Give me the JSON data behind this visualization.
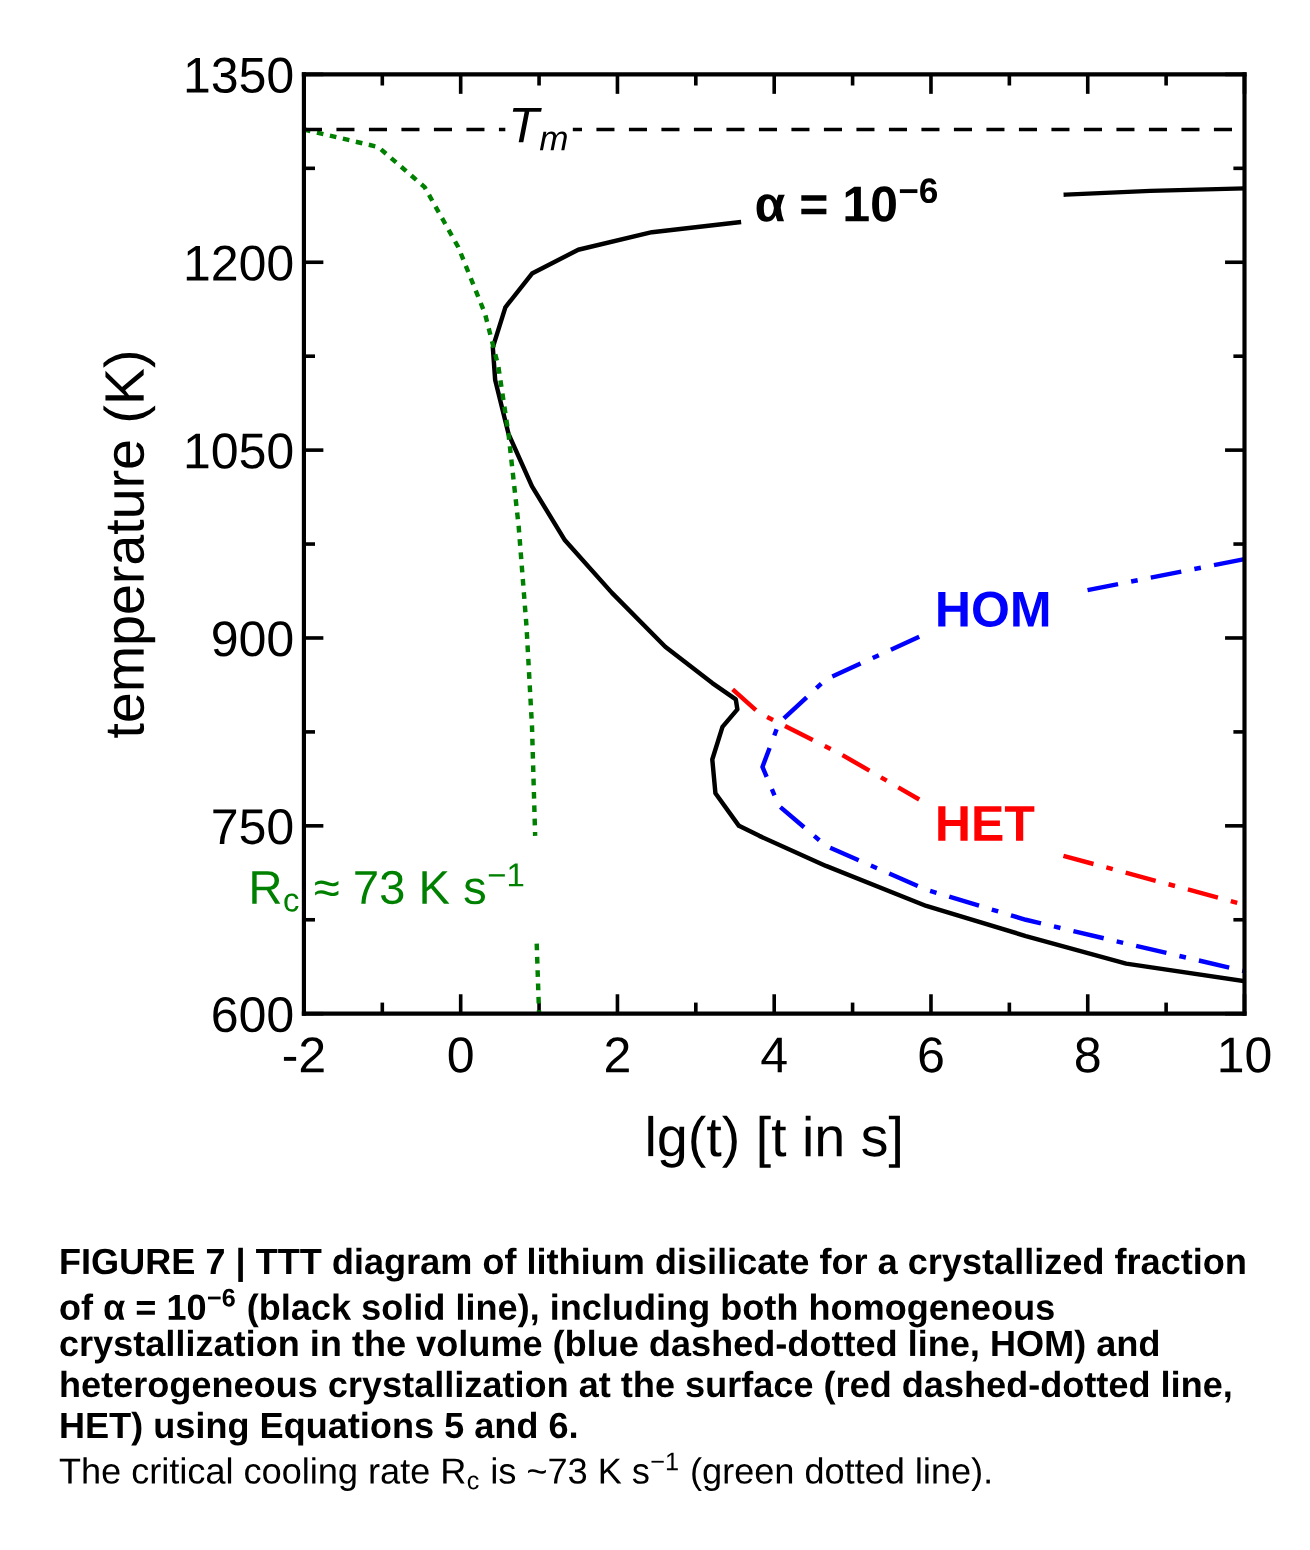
{
  "chart_data": {
    "type": "line",
    "xlabel": "lg(t) [t in s]",
    "ylabel": "temperature (K)",
    "xlim": [
      -2,
      10
    ],
    "ylim": [
      600,
      1350
    ],
    "xticks": [
      -2,
      {
        "value": -1,
        "label": null
      },
      0,
      {
        "value": 1,
        "label": null
      },
      2,
      {
        "value": 3,
        "label": null
      },
      4,
      {
        "value": 5,
        "label": null
      },
      6,
      {
        "value": 7,
        "label": null
      },
      8,
      {
        "value": 9,
        "label": null
      },
      10
    ],
    "yticks": [
      600,
      {
        "value": 675,
        "label": null
      },
      750,
      {
        "value": 825,
        "label": null
      },
      900,
      {
        "value": 975,
        "label": null
      },
      1050,
      {
        "value": 1125,
        "label": null
      },
      1200,
      {
        "value": 1275,
        "label": null
      },
      1350
    ],
    "grid": false,
    "legend": false,
    "marker": "none",
    "series": [
      {
        "name": "α = 10$^{−6}$",
        "color": "#000000",
        "line_style": "solid",
        "x": [
          10,
          8.8,
          7.72,
          5.6,
          3.55,
          2.44,
          1.5,
          0.91,
          0.57,
          0.41,
          0.44,
          0.61,
          0.91,
          1.33,
          1.93,
          2.61,
          3.21,
          3.51,
          3.53,
          3.34,
          3.21,
          3.25,
          3.55,
          3.81,
          4.66,
          5.94,
          7.21,
          8.49,
          10
        ],
        "values": [
          1259,
          1257,
          1254,
          null,
          1232,
          1224,
          1210,
          1191,
          1164,
          1132,
          1106,
          1063,
          1021,
          978,
          936,
          893,
          864,
          851,
          843,
          829,
          803,
          776,
          750,
          742,
          718,
          686,
          662,
          640,
          626
        ]
      },
      {
        "name": "HOM",
        "color": "#0000ff",
        "line_style": "dashdot",
        "x": [
          10,
          7.98,
          6.9,
          5.85,
          4.66,
          4.06,
          3.85,
          4.06,
          4.66,
          5.94,
          7.21,
          8.49,
          10
        ],
        "values": [
          963,
          938,
          null,
          901,
          867,
          832,
          797,
          766,
          734,
          699,
          675,
          656,
          634
        ]
      },
      {
        "name": "HET",
        "color": "#ff0000",
        "line_style": "dashdot",
        "x": [
          3.47,
          3.81,
          4.83,
          5.85,
          6.77,
          7.69,
          10
        ],
        "values": [
          859,
          840,
          808,
          771,
          null,
          726,
          687
        ]
      },
      {
        "name": "R$_{c}$ ≈ 73 K s$^{−1}$",
        "color": "#008000",
        "line_style": "dotted",
        "x": [
          -2,
          -1.05,
          -0.46,
          -0.03,
          0.31,
          0.48,
          0.61,
          0.74,
          0.84,
          0.91,
          0.95,
          0.96,
          0.97,
          1.0
        ],
        "values": [
          1306,
          1292,
          1260,
          1212,
          1159,
          1117,
          1063,
          989,
          909,
          829,
          742,
          null,
          656,
          600
        ]
      }
    ],
    "ref_lines": [
      {
        "axis": "y",
        "value": 1306,
        "label": "T$_{m}$",
        "color": "#000000",
        "line_style": "dashed"
      }
    ],
    "annotations": [
      "FIGURE 7 | TTT diagram of lithium disilicate for a crystallized fraction of α = 10$^{−6}$ (black solid line), including both homogeneous crystallization in the volume (blue dashed-dotted line, HOM) and heterogeneous crystallization at the surface (red dashed-dotted line, HET) using Equations 5 and 6.",
      "The critical cooling rate R$_{c}$ is ~73 K s$^{−1}$ (green dotted line)."
    ]
  }
}
